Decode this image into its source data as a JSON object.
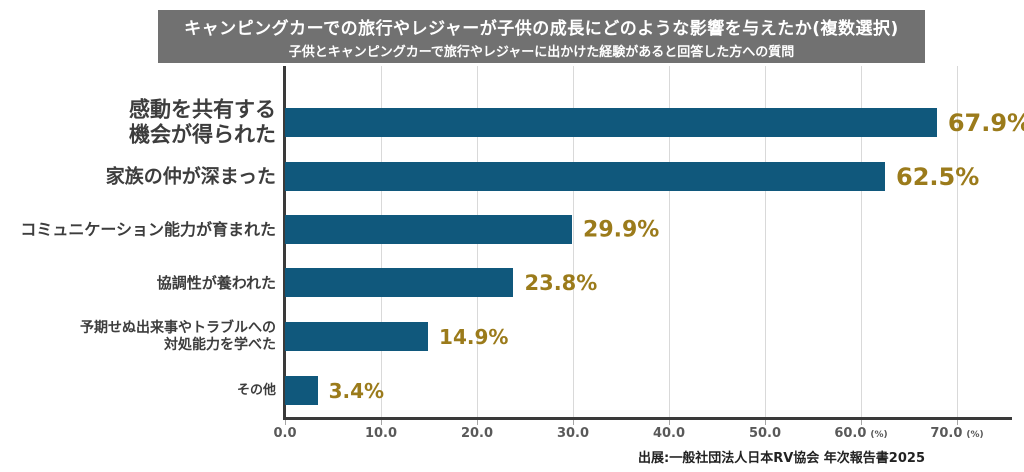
{
  "chart_data": {
    "type": "bar",
    "orientation": "horizontal",
    "title": "キャンピングカーでの旅行やレジャーが子供の成長にどのような影響を与えたか(複数選択)",
    "subtitle": "子供とキャンピングカーで旅行やレジャーに出かけた経験があると回答した方への質問",
    "categories": [
      "感動を共有する機会が得られた",
      "家族の仲が深まった",
      "コミュニケーション能力が育まれた",
      "協調性が養われた",
      "予期せぬ出来事やトラブルへの対処能力を学べた",
      "その他"
    ],
    "category_lines": [
      [
        "感動を共有する",
        "機会が得られた"
      ],
      [
        "家族の仲が深まった"
      ],
      [
        "コミュニケーション能力が育まれた"
      ],
      [
        "協調性が養われた"
      ],
      [
        "予期せぬ出来事やトラブルへの",
        "対処能力を学べた"
      ],
      [
        "その他"
      ]
    ],
    "values": [
      67.9,
      62.5,
      29.9,
      23.8,
      14.9,
      3.4
    ],
    "value_labels": [
      "67.9%",
      "62.5%",
      "29.9%",
      "23.8%",
      "14.9%",
      "3.4%"
    ],
    "xlabel": "",
    "ylabel": "",
    "xlim": [
      0,
      70
    ],
    "x_ticks": [
      "0.0",
      "10.0",
      "20.0",
      "30.0",
      "40.0",
      "50.0",
      "60.0",
      "70.0"
    ],
    "x_tick_unit": "(%)",
    "grid": true,
    "legend": "none",
    "colors": {
      "bar": "#10587C",
      "value_label": "#9B7B1B",
      "title_bg": "#717171",
      "title_text": "#FFFFFF",
      "category_label": "#3D3D3D",
      "axis": "#3A3A3A",
      "gridline": "#D9D9D9",
      "tick_label": "#595959"
    }
  },
  "source": {
    "text": "出展:一般社団法人日本RV協会 年次報告書2025"
  }
}
